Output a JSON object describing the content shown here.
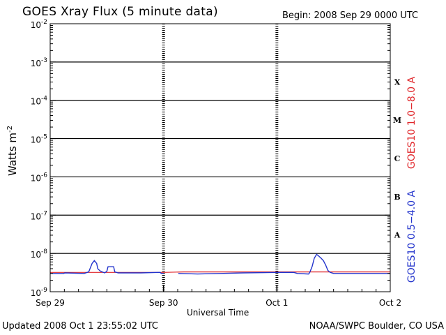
{
  "chart_data": {
    "type": "line",
    "title": "GOES Xray Flux (5 minute data)",
    "begin": "Begin:  2008 Sep 29 0000 UTC",
    "xlabel": "Universal Time",
    "ylabel": "Watts m",
    "ylabel_sup": "-2",
    "x_ticks": [
      "Sep 29",
      "Sep 30",
      "Oct 1",
      "Oct 2"
    ],
    "x_range_days": [
      0,
      3
    ],
    "y_scale": "log",
    "ylim": [
      1e-09,
      0.01
    ],
    "y_tick_labels": [
      {
        "base": "10",
        "exp": "-9"
      },
      {
        "base": "10",
        "exp": "-8"
      },
      {
        "base": "10",
        "exp": "-7"
      },
      {
        "base": "10",
        "exp": "-6"
      },
      {
        "base": "10",
        "exp": "-5"
      },
      {
        "base": "10",
        "exp": "-4"
      },
      {
        "base": "10",
        "exp": "-3"
      },
      {
        "base": "10",
        "exp": "-2"
      }
    ],
    "flare_classes": [
      {
        "label": "A",
        "flux": 1e-08
      },
      {
        "label": "B",
        "flux": 1e-07
      },
      {
        "label": "C",
        "flux": 1e-06
      },
      {
        "label": "M",
        "flux": 1e-05
      },
      {
        "label": "X",
        "flux": 0.0001
      }
    ],
    "series": [
      {
        "name": "GOES10 1.0−8.0 A",
        "color": "#e0262a",
        "points": [
          [
            0.0,
            3.2e-09
          ],
          [
            1.0,
            3.2e-09
          ],
          [
            1.18,
            3.3e-09
          ],
          [
            2.0,
            3.3e-09
          ],
          [
            2.2,
            3.3e-09
          ],
          [
            3.0,
            3.3e-09
          ]
        ]
      },
      {
        "name": "GOES10 0.5−4.0 A",
        "color": "#2233cc",
        "points": [
          [
            0.0,
            3e-09
          ],
          [
            0.12,
            3e-09
          ],
          [
            0.13,
            3.1e-09
          ],
          [
            0.3,
            3e-09
          ],
          [
            0.34,
            3.3e-09
          ],
          [
            0.37,
            5.5e-09
          ],
          [
            0.39,
            6.5e-09
          ],
          [
            0.41,
            5.5e-09
          ],
          [
            0.42,
            4e-09
          ],
          [
            0.44,
            3.5e-09
          ],
          [
            0.46,
            3.3e-09
          ],
          [
            0.48,
            3.1e-09
          ],
          [
            0.5,
            3.4e-09
          ],
          [
            0.51,
            4.5e-09
          ],
          [
            0.56,
            4.5e-09
          ],
          [
            0.57,
            3.3e-09
          ],
          [
            0.6,
            3.1e-09
          ],
          [
            0.8,
            3.1e-09
          ],
          [
            0.95,
            3.2e-09
          ],
          [
            0.97,
            3.2e-09
          ],
          [
            0.98,
            3e-09
          ],
          [
            1.0,
            3e-09
          ],
          [
            1.06,
            null
          ],
          [
            1.13,
            3e-09
          ],
          [
            1.3,
            2.9e-09
          ],
          [
            1.5,
            3e-09
          ],
          [
            1.7,
            3.1e-09
          ],
          [
            2.0,
            3.2e-09
          ],
          [
            2.15,
            3.2e-09
          ],
          [
            2.18,
            3e-09
          ],
          [
            2.28,
            2.9e-09
          ],
          [
            2.29,
            3.2e-09
          ],
          [
            2.31,
            4.5e-09
          ],
          [
            2.33,
            7.5e-09
          ],
          [
            2.35,
            9.5e-09
          ],
          [
            2.37,
            8.5e-09
          ],
          [
            2.39,
            7.5e-09
          ],
          [
            2.41,
            6.5e-09
          ],
          [
            2.43,
            5e-09
          ],
          [
            2.45,
            3.6e-09
          ],
          [
            2.47,
            3.2e-09
          ],
          [
            2.5,
            3e-09
          ],
          [
            2.7,
            3e-09
          ],
          [
            3.0,
            3e-09
          ]
        ]
      }
    ]
  },
  "footer": {
    "updated": "Updated 2008 Oct  1 23:55:02 UTC",
    "credit": "NOAA/SWPC Boulder, CO USA"
  }
}
